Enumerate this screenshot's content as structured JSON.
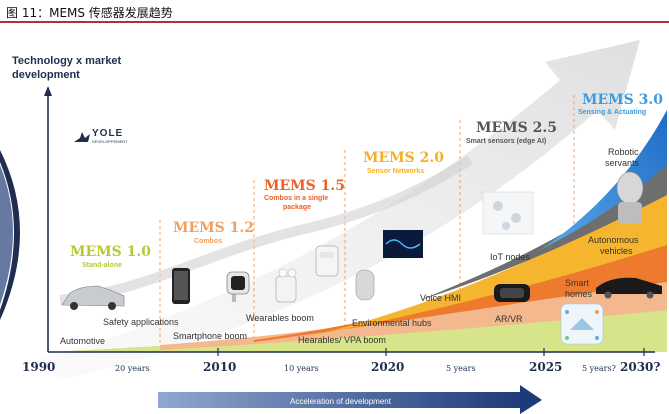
{
  "caption": "图 11：MEMS 传感器发展趋势",
  "yaxis_title_line1": "Technology x market",
  "yaxis_title_line2": "development",
  "logo_text": "YOLE",
  "logo_sub": "DEVELOPPEMENT",
  "generations": [
    {
      "title": "MEMS 1.0",
      "subtitle": "Stand-alone",
      "color": "#b8c832"
    },
    {
      "title": "MEMS 1.2",
      "subtitle": "Combos",
      "color": "#f0a060"
    },
    {
      "title": "MEMS 1.5",
      "subtitle": "Combos in a single package",
      "subtitle_l1": "Combos in a single",
      "subtitle_l2": "package",
      "color": "#e8632a"
    },
    {
      "title": "MEMS 2.0",
      "subtitle": "Sensor Networks",
      "color": "#f5b02a"
    },
    {
      "title": "MEMS 2.5",
      "subtitle": "Smart sensors (edge AI)",
      "color": "#555555"
    },
    {
      "title": "MEMS 3.0",
      "subtitle": "Sensing & Actuating",
      "color": "#3a9ce0"
    }
  ],
  "applications": {
    "automotive": "Automotive",
    "safety": "Safety applications",
    "smartphone": "Smartphone boom",
    "wearables": "Wearables boom",
    "environmental": "Environmental hubs",
    "hearables": "Hearables/ VPA boom",
    "voice": "Voice HMI",
    "arvr": "AR/VR",
    "iot": "IoT nodes",
    "smart_homes_l1": "Smart",
    "smart_homes_l2": "homes",
    "autonomous_l1": "Autonomous",
    "autonomous_l2": "vehicles",
    "robotic_l1": "Robotic",
    "robotic_l2": "servants"
  },
  "timeline": {
    "years": [
      "1990",
      "2010",
      "2020",
      "2025",
      "2030?"
    ],
    "gaps": [
      "20 years",
      "10 years",
      "5 years",
      "5 years?"
    ]
  },
  "acceleration_label": "Acceleration of development",
  "colors": {
    "navy": "#1f2e50",
    "band_lime": "#cfe07a",
    "band_peach": "#f3b88e",
    "band_orange": "#ee7a2e",
    "band_yellow": "#f6b52e",
    "band_gray": "#6e6e6e",
    "band_blue": "#3d8fd8",
    "accent_red": "#b03232"
  }
}
